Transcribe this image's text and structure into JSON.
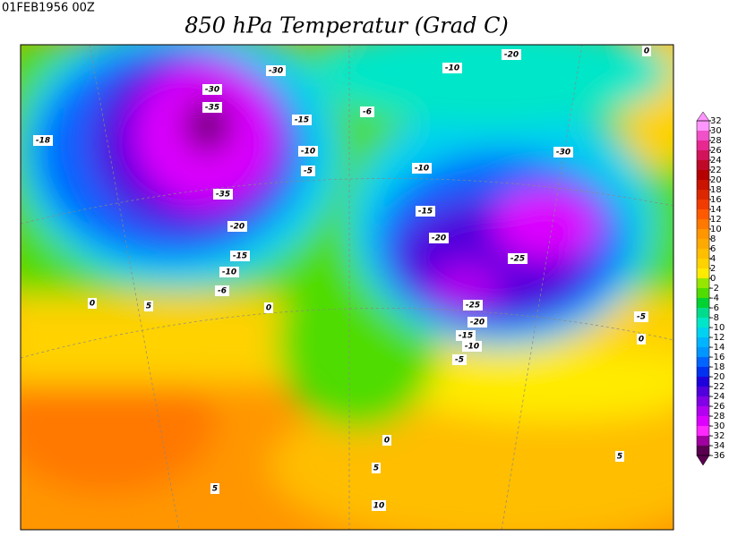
{
  "header": {
    "date": "01FEB1956 00Z",
    "title": "850 hPa Temperatur (Grad C)"
  },
  "colorbar": {
    "ticks": [
      32,
      30,
      28,
      26,
      24,
      22,
      20,
      18,
      16,
      14,
      12,
      10,
      8,
      6,
      4,
      2,
      0,
      -2,
      -4,
      -6,
      -8,
      -10,
      -12,
      -14,
      -16,
      -18,
      -20,
      -22,
      -24,
      -26,
      -28,
      -30,
      -32,
      -34,
      -36
    ],
    "colors": [
      "#ff96ff",
      "#f050c8",
      "#e62890",
      "#d2145a",
      "#be0a28",
      "#b40000",
      "#c81400",
      "#dc2800",
      "#f03c00",
      "#ff5a00",
      "#ff7800",
      "#ff9600",
      "#ffaa00",
      "#ffbe00",
      "#ffd200",
      "#ffeb00",
      "#96e600",
      "#50dc00",
      "#00d232",
      "#00dc8c",
      "#00e6c8",
      "#00d2f0",
      "#00b4ff",
      "#0096ff",
      "#0064ff",
      "#0032f0",
      "#1e00dc",
      "#5000dc",
      "#8200e6",
      "#b400f0",
      "#dc00ff",
      "#ff28ff",
      "#a000a0",
      "#5a0050"
    ]
  },
  "map": {
    "contour_labels": [
      "-30",
      "-30",
      "-35",
      "-15",
      "-18",
      "-10",
      "-5",
      "-6",
      "-10",
      "-20",
      "0",
      "-35",
      "-20",
      "-15",
      "-10",
      "-6",
      "0",
      "5",
      "0",
      "-10",
      "-15",
      "-30",
      "-20",
      "-25",
      "-25",
      "-20",
      "-15",
      "-10",
      "-5",
      "-5",
      "0",
      "0",
      "5",
      "10",
      "5",
      "5"
    ]
  }
}
